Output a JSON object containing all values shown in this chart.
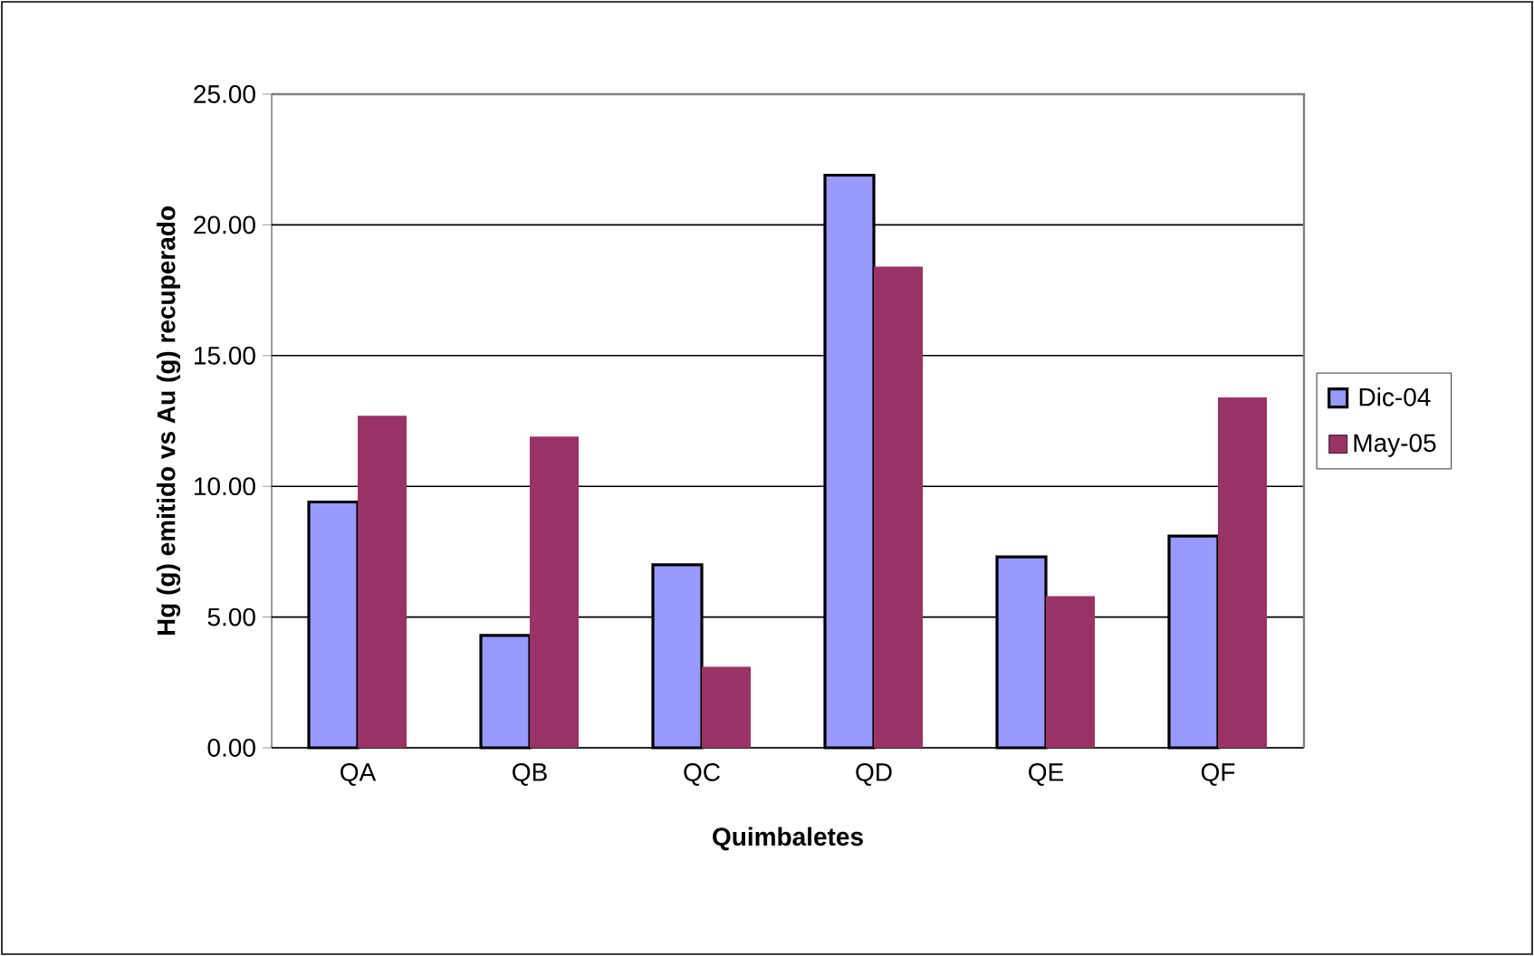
{
  "chart_data": {
    "type": "bar",
    "xlabel": "Quimbaletes",
    "ylabel": "Hg (g) emitido vs Au (g) recuperado",
    "categories": [
      "QA",
      "QB",
      "QC",
      "QD",
      "QE",
      "QF"
    ],
    "series": [
      {
        "name": "Dic-04",
        "color": "#9999ff",
        "values": [
          9.4,
          4.3,
          7.0,
          21.9,
          7.3,
          8.1
        ]
      },
      {
        "name": "May-05",
        "color": "#993366",
        "values": [
          12.7,
          11.9,
          3.1,
          18.4,
          5.8,
          13.4
        ]
      }
    ],
    "ylim": [
      0,
      25
    ],
    "yticks": [
      {
        "value": 0,
        "label": "0.00"
      },
      {
        "value": 5,
        "label": "5.00"
      },
      {
        "value": 10,
        "label": "10.00"
      },
      {
        "value": 15,
        "label": "15.00"
      },
      {
        "value": 20,
        "label": "20.00"
      },
      {
        "value": 25,
        "label": "25.00"
      }
    ],
    "grid": "y",
    "legend": "right"
  }
}
